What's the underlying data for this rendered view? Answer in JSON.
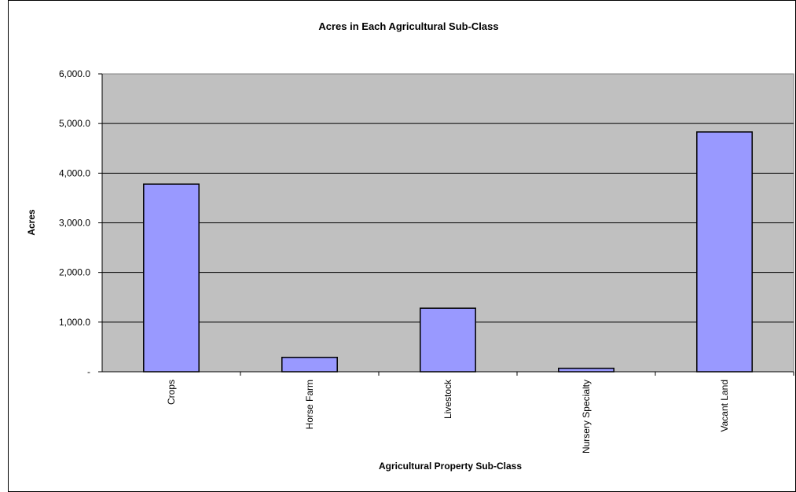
{
  "chart_data": {
    "type": "bar",
    "title": "Acres in Each Agricultural Sub-Class",
    "xlabel": "Agricultural Property Sub-Class",
    "ylabel": "Acres",
    "categories": [
      "Crops",
      "Horse Farm",
      "Livestock",
      "Nursery Specialty",
      "Vacant Land"
    ],
    "values": [
      3780,
      290,
      1280,
      70,
      4830
    ],
    "ylim": [
      0,
      6000
    ],
    "yticks": [
      0,
      1000,
      2000,
      3000,
      4000,
      5000,
      6000
    ],
    "ytick_labels": [
      "-",
      "1,000.0",
      "2,000.0",
      "3,000.0",
      "4,000.0",
      "5,000.0",
      "6,000.0"
    ],
    "grid": true,
    "legend": "none",
    "colors": {
      "bar_fill": "#9999ff",
      "bar_stroke": "#000000",
      "plot_background": "#c0c0c0",
      "gridline": "#000000",
      "chart_background": "#ffffff"
    }
  }
}
